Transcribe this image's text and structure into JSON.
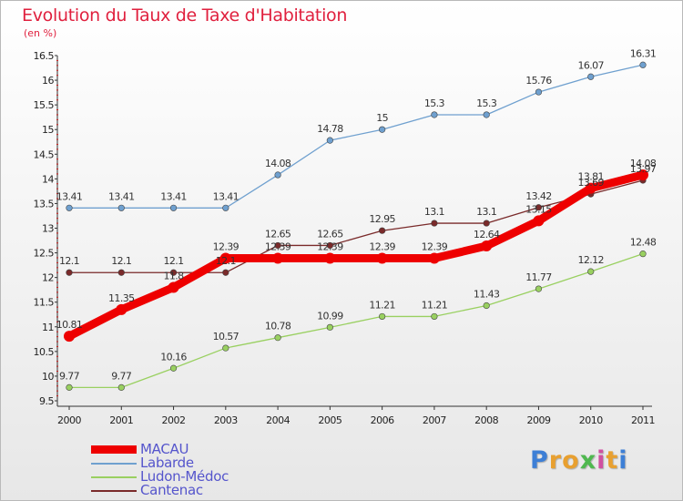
{
  "chart_data": {
    "type": "line",
    "title": "Evolution du Taux de Taxe d'Habitation",
    "subtitle": "(en %)",
    "x": [
      "2000",
      "2001",
      "2002",
      "2003",
      "2004",
      "2005",
      "2006",
      "2007",
      "2008",
      "2009",
      "2010",
      "2011"
    ],
    "yticks": [
      "9.5",
      "10",
      "10.5",
      "11",
      "11.5",
      "12",
      "12.5",
      "13",
      "13.5",
      "14",
      "14.5",
      "15",
      "15.5",
      "16",
      "16.5"
    ],
    "ylim": [
      9.5,
      16.5
    ],
    "grid": false,
    "legend_position": "bottom-left",
    "series": [
      {
        "name": "MACAU",
        "color": "#ee0000",
        "values": [
          10.81,
          11.35,
          11.8,
          12.39,
          12.39,
          12.39,
          12.39,
          12.39,
          12.64,
          13.15,
          13.81,
          14.08
        ],
        "labels": [
          "10.81",
          "11.35",
          "11.8",
          "12.39",
          "12.39",
          "12.39",
          "12.39",
          "12.39",
          "12.64",
          "13.15",
          "13.81",
          "14.08"
        ]
      },
      {
        "name": "Labarde",
        "color": "#6fa0cf",
        "values": [
          13.41,
          13.41,
          13.41,
          13.41,
          14.08,
          14.78,
          15,
          15.3,
          15.3,
          15.76,
          16.07,
          16.31
        ],
        "labels": [
          "13.41",
          "13.41",
          "13.41",
          "13.41",
          "14.08",
          "14.78",
          "15",
          "15.3",
          "15.3",
          "15.76",
          "16.07",
          "16.31"
        ]
      },
      {
        "name": "Ludon-Médoc",
        "color": "#99d060",
        "values": [
          9.77,
          9.77,
          10.16,
          10.57,
          10.78,
          10.99,
          11.21,
          11.21,
          11.43,
          11.77,
          12.12,
          12.48
        ],
        "labels": [
          "9.77",
          "9.77",
          "10.16",
          "10.57",
          "10.78",
          "10.99",
          "11.21",
          "11.21",
          "11.43",
          "11.77",
          "12.12",
          "12.48"
        ]
      },
      {
        "name": "Cantenac",
        "color": "#7a2a2a",
        "values": [
          12.1,
          12.1,
          12.1,
          12.1,
          12.65,
          12.65,
          12.95,
          13.1,
          13.1,
          13.42,
          13.69,
          13.97
        ],
        "labels": [
          "12.1",
          "12.1",
          "12.1",
          "12.1",
          "12.65",
          "12.65",
          "12.95",
          "13.1",
          "13.1",
          "13.42",
          "13.69",
          "13.97"
        ]
      }
    ]
  },
  "logo": {
    "letters": [
      "P",
      "r",
      "o",
      "x",
      "i",
      "t",
      "i"
    ],
    "colors": [
      "#3d7fd6",
      "#e8a030",
      "#e8a030",
      "#4fb84f",
      "#d04fa0",
      "#e8a030",
      "#3d7fd6"
    ]
  }
}
